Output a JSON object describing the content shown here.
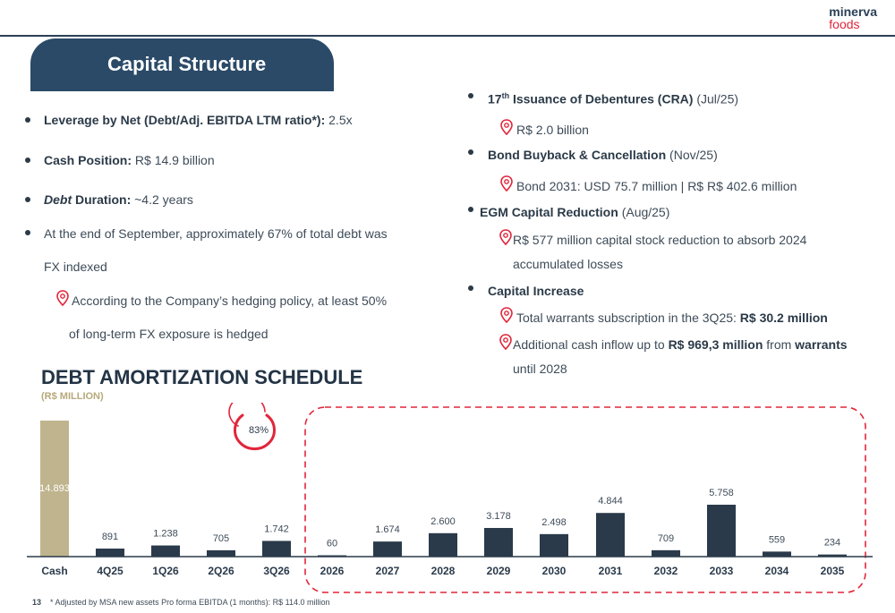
{
  "logo": {
    "line1": "minerva",
    "line2": "foods"
  },
  "title": "Capital Structure",
  "left_bullets": {
    "leverage_label": "Leverage by Net (Debt/Adj. EBITDA LTM ratio*):",
    "leverage_value": "2.5x",
    "cash_label": "Cash Position:",
    "cash_value": "R$ 14.9 billion",
    "duration_label_italic": "Debt",
    "duration_label": "Duration:",
    "duration_value": "~4.2 years",
    "fx_line1": "At the end of September, approximately 67% of total debt was",
    "fx_line2": "FX indexed",
    "hedge_line1": "According to the Company’s hedging policy, at least 50%",
    "hedge_line2": "of long-term FX exposure is hedged"
  },
  "right_bullets": {
    "issuance_label_pre": "17",
    "issuance_label_sup": "th",
    "issuance_label_post": "Issuance of Debentures (CRA)",
    "issuance_date": "(Jul/25)",
    "issuance_detail": "R$ 2.0 billion",
    "buyback_label": "Bond Buyback & Cancellation",
    "buyback_date": "(Nov/25)",
    "buyback_detail": "Bond 2031: USD 75.7 million | R$ R$ 402.6 million",
    "egm_label": "EGM Capital Reduction",
    "egm_date": "(Aug/25)",
    "egm_detail_line1": "R$ 577 million capital stock reduction to absorb 2024",
    "egm_detail_line2": "accumulated losses",
    "capital_label": "Capital Increase",
    "warrants_text": "Total warrants subscription in the 3Q25:",
    "warrants_value": "R$ 30.2 million",
    "inflow_pre": "Additional cash inflow up to",
    "inflow_value": "R$ 969,3 million",
    "inflow_mid": "from",
    "inflow_bold": "warrants",
    "inflow_line2": "until 2028"
  },
  "chart_title": "DEBT AMORTIZATION SCHEDULE",
  "chart_subtitle": "(R$ MILLION)",
  "chart_data": {
    "type": "bar",
    "title": "DEBT AMORTIZATION SCHEDULE",
    "ylabel": "(R$ MILLION)",
    "categories": [
      "Cash",
      "4Q25",
      "1Q26",
      "2Q26",
      "3Q26",
      "2026",
      "2027",
      "2028",
      "2029",
      "2030",
      "2031",
      "2032",
      "2033",
      "2034",
      "2035"
    ],
    "values": [
      14893,
      891,
      1238,
      705,
      1742,
      60,
      1674,
      2600,
      3178,
      2498,
      4844,
      709,
      5758,
      559,
      234
    ],
    "labels": [
      "14.893",
      "891",
      "1.238",
      "705",
      "1.742",
      "60",
      "1.674",
      "2.600",
      "3.178",
      "2.498",
      "4.844",
      "709",
      "5.758",
      "559",
      "234"
    ],
    "cash_color": "#bfb48d",
    "bar_color": "#2a3a4a",
    "annotation": "83%",
    "ylim": [
      0,
      14893
    ]
  },
  "colors": {
    "accent": "#e1263a",
    "navy": "#2a4a68"
  },
  "footnote": {
    "page": "13",
    "text": "* Adjusted by MSA new assets Pro forma EBITDA (1 months): R$ 114.0 million"
  }
}
